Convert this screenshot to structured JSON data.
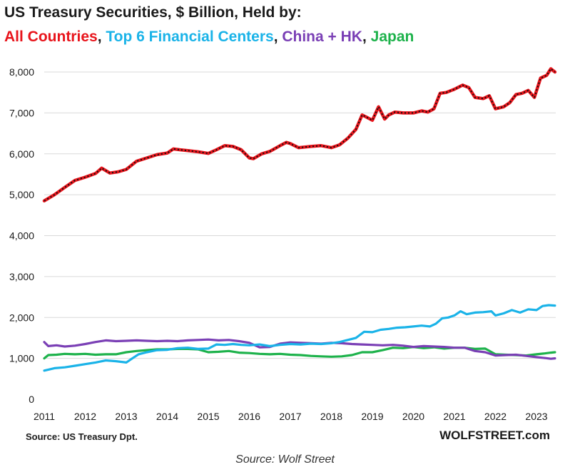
{
  "chart_data": {
    "type": "line",
    "title": "US Treasury Securities, $ Billion, Held by:",
    "subtitle_prefix": "",
    "xlabel": "",
    "ylabel": "",
    "ylim": [
      0,
      8000
    ],
    "y_ticks": [
      "0",
      "1,000",
      "2,000",
      "3,000",
      "4,000",
      "5,000",
      "6,000",
      "7,000",
      "8,000"
    ],
    "y_tick_values": [
      0,
      1000,
      2000,
      3000,
      4000,
      5000,
      6000,
      7000,
      8000
    ],
    "xlim": [
      2011,
      2023.5
    ],
    "x_ticks": [
      "2011",
      "2012",
      "2013",
      "2014",
      "2015",
      "2016",
      "2017",
      "2018",
      "2019",
      "2020",
      "2021",
      "2022",
      "2023"
    ],
    "x_tick_values": [
      2011,
      2012,
      2013,
      2014,
      2015,
      2016,
      2017,
      2018,
      2019,
      2020,
      2021,
      2022,
      2023
    ],
    "grid": "horizontal",
    "legend": "in-title",
    "series": [
      {
        "name": "All Countries",
        "color": "#e8141b",
        "overlay": "dotted-black",
        "x": [
          2011,
          2011.25,
          2011.5,
          2011.75,
          2012,
          2012.25,
          2012.4,
          2012.6,
          2012.8,
          2013,
          2013.25,
          2013.5,
          2013.75,
          2014,
          2014.15,
          2014.3,
          2014.5,
          2014.75,
          2015,
          2015.2,
          2015.4,
          2015.6,
          2015.8,
          2016,
          2016.1,
          2016.3,
          2016.5,
          2016.75,
          2016.9,
          2017,
          2017.2,
          2017.5,
          2017.75,
          2018,
          2018.2,
          2018.4,
          2018.6,
          2018.75,
          2018.85,
          2019,
          2019.15,
          2019.3,
          2019.4,
          2019.55,
          2019.75,
          2020,
          2020.2,
          2020.35,
          2020.5,
          2020.65,
          2020.8,
          2021,
          2021.2,
          2021.35,
          2021.5,
          2021.7,
          2021.85,
          2022,
          2022.2,
          2022.35,
          2022.5,
          2022.65,
          2022.8,
          2022.95,
          2023.1,
          2023.25,
          2023.35,
          2023.45
        ],
        "values": [
          4850,
          5000,
          5180,
          5350,
          5430,
          5520,
          5650,
          5530,
          5560,
          5620,
          5820,
          5900,
          5980,
          6020,
          6120,
          6100,
          6080,
          6050,
          6010,
          6100,
          6200,
          6180,
          6100,
          5900,
          5880,
          6000,
          6060,
          6200,
          6280,
          6250,
          6150,
          6180,
          6200,
          6150,
          6220,
          6380,
          6600,
          6950,
          6900,
          6820,
          7150,
          6850,
          6950,
          7020,
          7000,
          7000,
          7050,
          7020,
          7100,
          7480,
          7500,
          7580,
          7680,
          7620,
          7380,
          7350,
          7420,
          7100,
          7150,
          7250,
          7450,
          7480,
          7550,
          7380,
          7850,
          7920,
          8080,
          8000
        ]
      },
      {
        "name": "Top 6 Financial Centers",
        "color": "#1ab3e8",
        "x": [
          2011,
          2011.25,
          2011.5,
          2011.75,
          2012,
          2012.25,
          2012.5,
          2012.75,
          2013,
          2013.15,
          2013.3,
          2013.5,
          2013.75,
          2014,
          2014.25,
          2014.5,
          2014.75,
          2015,
          2015.2,
          2015.4,
          2015.6,
          2015.8,
          2016,
          2016.25,
          2016.5,
          2016.75,
          2017,
          2017.25,
          2017.5,
          2017.75,
          2018,
          2018.2,
          2018.4,
          2018.6,
          2018.8,
          2019,
          2019.2,
          2019.4,
          2019.6,
          2019.8,
          2020,
          2020.2,
          2020.4,
          2020.55,
          2020.7,
          2020.85,
          2021,
          2021.15,
          2021.3,
          2021.5,
          2021.7,
          2021.9,
          2022,
          2022.2,
          2022.4,
          2022.6,
          2022.8,
          2023,
          2023.15,
          2023.3,
          2023.45
        ],
        "values": [
          700,
          760,
          780,
          820,
          860,
          900,
          950,
          930,
          900,
          1000,
          1100,
          1150,
          1200,
          1210,
          1250,
          1260,
          1230,
          1240,
          1340,
          1330,
          1350,
          1330,
          1320,
          1340,
          1300,
          1330,
          1350,
          1340,
          1360,
          1350,
          1370,
          1400,
          1450,
          1500,
          1650,
          1640,
          1700,
          1720,
          1750,
          1760,
          1780,
          1800,
          1780,
          1850,
          1980,
          2000,
          2050,
          2150,
          2080,
          2120,
          2130,
          2150,
          2050,
          2100,
          2180,
          2120,
          2200,
          2180,
          2280,
          2300,
          2290
        ]
      },
      {
        "name": "China + HK",
        "color": "#7a3fb5",
        "x": [
          2011,
          2011.1,
          2011.3,
          2011.5,
          2011.75,
          2012,
          2012.25,
          2012.5,
          2012.75,
          2013,
          2013.25,
          2013.5,
          2013.75,
          2014,
          2014.25,
          2014.5,
          2014.75,
          2015,
          2015.25,
          2015.5,
          2015.75,
          2016,
          2016.25,
          2016.5,
          2016.75,
          2017,
          2017.25,
          2017.5,
          2017.75,
          2018,
          2018.25,
          2018.5,
          2018.75,
          2019,
          2019.25,
          2019.5,
          2019.75,
          2020,
          2020.25,
          2020.5,
          2020.75,
          2021,
          2021.25,
          2021.5,
          2021.75,
          2022,
          2022.25,
          2022.5,
          2022.75,
          2023,
          2023.2,
          2023.35,
          2023.45
        ],
        "values": [
          1400,
          1300,
          1320,
          1290,
          1310,
          1350,
          1400,
          1440,
          1420,
          1430,
          1440,
          1430,
          1420,
          1430,
          1420,
          1440,
          1450,
          1460,
          1440,
          1450,
          1420,
          1380,
          1270,
          1280,
          1360,
          1390,
          1380,
          1370,
          1360,
          1380,
          1370,
          1350,
          1340,
          1330,
          1320,
          1330,
          1310,
          1280,
          1300,
          1290,
          1280,
          1260,
          1260,
          1180,
          1150,
          1070,
          1080,
          1090,
          1060,
          1030,
          1010,
          990,
          1000
        ]
      },
      {
        "name": "Japan",
        "color": "#1db24b",
        "x": [
          2011,
          2011.1,
          2011.3,
          2011.5,
          2011.75,
          2012,
          2012.25,
          2012.5,
          2012.75,
          2013,
          2013.25,
          2013.5,
          2013.75,
          2014,
          2014.25,
          2014.5,
          2014.75,
          2015,
          2015.25,
          2015.5,
          2015.75,
          2016,
          2016.25,
          2016.5,
          2016.75,
          2017,
          2017.25,
          2017.5,
          2017.75,
          2018,
          2018.25,
          2018.5,
          2018.75,
          2019,
          2019.25,
          2019.5,
          2019.75,
          2020,
          2020.25,
          2020.5,
          2020.75,
          2021,
          2021.25,
          2021.5,
          2021.75,
          2022,
          2022.25,
          2022.5,
          2022.75,
          2023,
          2023.2,
          2023.35,
          2023.45
        ],
        "values": [
          1000,
          1080,
          1090,
          1110,
          1100,
          1110,
          1090,
          1100,
          1100,
          1150,
          1180,
          1200,
          1220,
          1220,
          1230,
          1230,
          1220,
          1150,
          1160,
          1180,
          1140,
          1130,
          1110,
          1100,
          1110,
          1090,
          1080,
          1060,
          1050,
          1040,
          1050,
          1080,
          1150,
          1150,
          1200,
          1260,
          1250,
          1280,
          1250,
          1270,
          1240,
          1260,
          1260,
          1230,
          1240,
          1100,
          1090,
          1080,
          1070,
          1100,
          1120,
          1140,
          1150
        ]
      }
    ]
  },
  "source_left": "Source: US Treasury  Dpt.",
  "source_right": "WOLFSTREET.com",
  "caption": "Source: Wolf Street"
}
